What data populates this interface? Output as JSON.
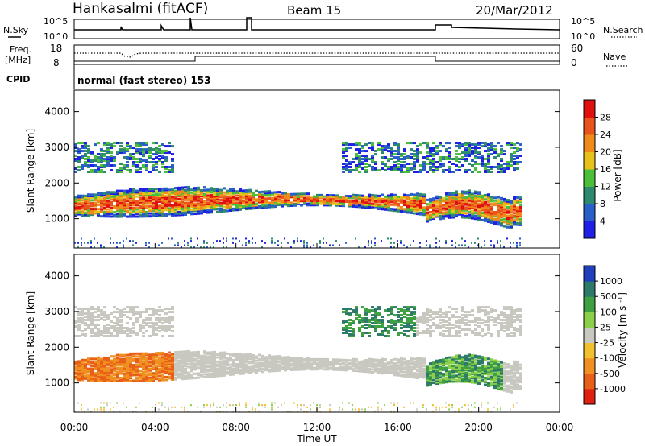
{
  "header": {
    "station": "Hankasalmi (fitACF)",
    "beam": "Beam 15",
    "date": "20/Mar/2012"
  },
  "strips": {
    "nsky_label": "N.Sky",
    "nsky_ticks": [
      "10^5",
      "10^0"
    ],
    "nsearch_label": "N.Search",
    "nsearch_ticks": [
      "10^5",
      "10^0"
    ],
    "freq_label_top": "Freq.",
    "freq_label_unit": "[MHz]",
    "freq_ticks": [
      "18",
      "8"
    ],
    "nave_label": "Nave",
    "nave_ticks": [
      "60",
      "0"
    ],
    "cpid_label": "CPID",
    "cpid_text": "normal (fast stereo) 153"
  },
  "chart_data": [
    {
      "type": "heatmap",
      "name": "power",
      "ylabel": "Slant Range [km]",
      "yticks": [
        1000,
        2000,
        3000,
        4000
      ],
      "ylim": [
        180,
        4600
      ],
      "colorbar_label": "Power [dB]",
      "colorbar_ticks": [
        "28",
        "24",
        "20",
        "16",
        "12",
        "8",
        "4"
      ],
      "colors": [
        "#1f1fe6",
        "#2a5fc9",
        "#2e8a6e",
        "#4bbf3a",
        "#e6c21a",
        "#f08a1a",
        "#e8541c",
        "#e01010"
      ]
    },
    {
      "type": "heatmap",
      "name": "velocity",
      "ylabel": "Slant Range [km]",
      "yticks": [
        1000,
        2000,
        3000,
        4000
      ],
      "ylim": [
        180,
        4600
      ],
      "xlabel": "Time UT",
      "xticks": [
        "00:00",
        "04:00",
        "08:00",
        "12:00",
        "16:00",
        "20:00",
        "00:00"
      ],
      "colorbar_label": "Velocity [m s^-1]",
      "colorbar_ticks": [
        "1000",
        "500",
        "100",
        "25",
        "-25",
        "-100",
        "-500",
        "-1000"
      ],
      "colors": [
        "#1f3fbf",
        "#2e7a6a",
        "#3ea040",
        "#8bcf4a",
        "#c8c8c0",
        "#f0c030",
        "#f09020",
        "#e86018",
        "#e02010"
      ]
    }
  ]
}
